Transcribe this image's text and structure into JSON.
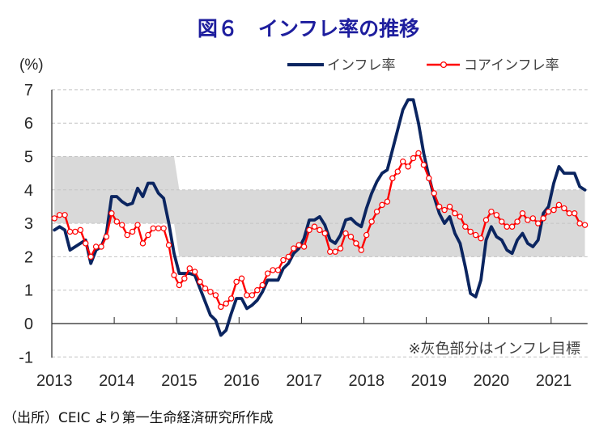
{
  "source": "（出所）CEIC より第一生命経済研究所作成",
  "chart_data": {
    "type": "line",
    "title": "図６　インフレ率の推移",
    "title_color": "#1e1e9e",
    "xlabel": "",
    "ylabel": "(%)",
    "ylim": [
      -1,
      7
    ],
    "yticks": [
      7,
      6,
      5,
      4,
      3,
      2,
      1,
      0,
      -1
    ],
    "negative_label_color": "#ff0000",
    "x_tick_labels": [
      "2013",
      "2014",
      "2015",
      "2016",
      "2017",
      "2018",
      "2019",
      "2020",
      "2021"
    ],
    "grid": {
      "horizontal": true,
      "style": "dashed"
    },
    "legend": {
      "position": "top-right"
    },
    "annotation": "※灰色部分はインフレ目標",
    "x": [
      "2013-01",
      "2013-02",
      "2013-03",
      "2013-04",
      "2013-05",
      "2013-06",
      "2013-07",
      "2013-08",
      "2013-09",
      "2013-10",
      "2013-11",
      "2013-12",
      "2014-01",
      "2014-02",
      "2014-03",
      "2014-04",
      "2014-05",
      "2014-06",
      "2014-07",
      "2014-08",
      "2014-09",
      "2014-10",
      "2014-11",
      "2014-12",
      "2015-01",
      "2015-02",
      "2015-03",
      "2015-04",
      "2015-05",
      "2015-06",
      "2015-07",
      "2015-08",
      "2015-09",
      "2015-10",
      "2015-11",
      "2015-12",
      "2016-01",
      "2016-02",
      "2016-03",
      "2016-04",
      "2016-05",
      "2016-06",
      "2016-07",
      "2016-08",
      "2016-09",
      "2016-10",
      "2016-11",
      "2016-12",
      "2017-01",
      "2017-02",
      "2017-03",
      "2017-04",
      "2017-05",
      "2017-06",
      "2017-07",
      "2017-08",
      "2017-09",
      "2017-10",
      "2017-11",
      "2017-12",
      "2018-01",
      "2018-02",
      "2018-03",
      "2018-04",
      "2018-05",
      "2018-06",
      "2018-07",
      "2018-08",
      "2018-09",
      "2018-10",
      "2018-11",
      "2018-12",
      "2019-01",
      "2019-02",
      "2019-03",
      "2019-04",
      "2019-05",
      "2019-06",
      "2019-07",
      "2019-08",
      "2019-09",
      "2019-10",
      "2019-11",
      "2019-12",
      "2020-01",
      "2020-02",
      "2020-03",
      "2020-04",
      "2020-05",
      "2020-06",
      "2020-07",
      "2020-08",
      "2020-09",
      "2020-10",
      "2020-11",
      "2020-12",
      "2021-01",
      "2021-02",
      "2021-03",
      "2021-04",
      "2021-05",
      "2021-06",
      "2021-07"
    ],
    "series": [
      {
        "name": "インフレ率",
        "color": "#0b2560",
        "marker": "none",
        "values": [
          2.8,
          2.9,
          2.8,
          2.2,
          2.3,
          2.4,
          2.5,
          1.8,
          2.2,
          2.3,
          2.7,
          3.8,
          3.8,
          3.65,
          3.55,
          3.6,
          4.05,
          3.8,
          4.2,
          4.2,
          3.9,
          3.75,
          3.0,
          2.1,
          1.5,
          1.5,
          1.5,
          1.45,
          1.05,
          0.65,
          0.25,
          0.1,
          -0.35,
          -0.2,
          0.3,
          0.75,
          0.75,
          0.45,
          0.55,
          0.7,
          0.95,
          1.3,
          1.3,
          1.3,
          1.65,
          1.8,
          2.1,
          2.25,
          2.55,
          3.1,
          3.1,
          3.2,
          2.95,
          2.5,
          2.4,
          2.65,
          3.1,
          3.15,
          3.0,
          2.9,
          3.45,
          3.9,
          4.25,
          4.5,
          4.6,
          5.2,
          5.8,
          6.4,
          6.7,
          6.7,
          6.0,
          5.1,
          4.4,
          3.8,
          3.3,
          3.0,
          3.2,
          2.7,
          2.4,
          1.7,
          0.9,
          0.8,
          1.3,
          2.5,
          2.9,
          2.6,
          2.5,
          2.2,
          2.1,
          2.5,
          2.7,
          2.4,
          2.3,
          2.5,
          3.3,
          3.5,
          4.2,
          4.7,
          4.5,
          4.5,
          4.5,
          4.1,
          4.0
        ]
      },
      {
        "name": "コアインフレ率",
        "color": "#ff0000",
        "marker": "open-circle",
        "values": [
          3.15,
          3.25,
          3.25,
          2.75,
          2.75,
          2.8,
          2.4,
          2.0,
          2.3,
          2.3,
          2.6,
          3.3,
          3.05,
          2.95,
          2.65,
          2.75,
          2.95,
          2.4,
          2.65,
          2.85,
          2.85,
          2.85,
          2.35,
          1.45,
          1.15,
          1.35,
          1.65,
          1.55,
          1.25,
          1.05,
          0.95,
          0.85,
          0.5,
          0.6,
          0.75,
          1.25,
          1.35,
          0.85,
          0.85,
          1.0,
          1.15,
          1.5,
          1.6,
          1.6,
          1.9,
          2.0,
          2.25,
          2.35,
          2.3,
          2.8,
          2.9,
          2.8,
          2.7,
          2.15,
          2.15,
          2.25,
          2.7,
          2.6,
          2.4,
          2.2,
          2.65,
          3.05,
          3.35,
          3.55,
          3.65,
          4.35,
          4.55,
          4.85,
          4.7,
          4.95,
          5.1,
          4.75,
          4.35,
          3.9,
          3.5,
          3.4,
          3.5,
          3.3,
          3.2,
          2.9,
          2.75,
          2.65,
          2.55,
          3.1,
          3.35,
          3.25,
          3.05,
          2.9,
          2.9,
          3.05,
          3.3,
          3.1,
          3.15,
          3.0,
          3.15,
          3.35,
          3.4,
          3.55,
          3.45,
          3.3,
          3.3,
          3.0,
          2.95
        ]
      }
    ],
    "target_band": {
      "label": "インフレ目標",
      "color": "#d9d9d9",
      "periods": [
        {
          "from": "2013-01",
          "to": "2014-12",
          "lower": 3,
          "upper": 5
        },
        {
          "from": "2015-01",
          "to": "2021-07",
          "lower": 2,
          "upper": 4
        }
      ]
    }
  }
}
